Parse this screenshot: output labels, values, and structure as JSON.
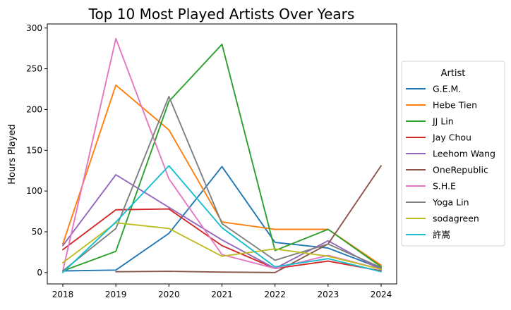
{
  "chart_data": {
    "type": "line",
    "title": "Top 10 Most Played Artists Over Years",
    "xlabel": "",
    "ylabel": "Hours Played",
    "x": [
      "2018",
      "2019",
      "2020",
      "2021",
      "2022",
      "2023",
      "2024"
    ],
    "ylim": [
      -14,
      305
    ],
    "yticks": [
      0,
      50,
      100,
      150,
      200,
      250,
      300
    ],
    "grid": false,
    "legend": {
      "title": "Artist",
      "placement": "outside-right"
    },
    "series": [
      {
        "name": "G.E.M.",
        "color": "#1f77b4",
        "values": [
          2,
          3,
          48,
          130,
          37,
          30,
          5
        ]
      },
      {
        "name": "Hebe Tien",
        "color": "#ff7f0e",
        "values": [
          35,
          230,
          175,
          62,
          53,
          53,
          9
        ]
      },
      {
        "name": "JJ Lin",
        "color": "#2ca02c",
        "values": [
          2,
          26,
          210,
          280,
          27,
          53,
          7
        ]
      },
      {
        "name": "Jay Chou",
        "color": "#d62728",
        "values": [
          28,
          77,
          78,
          33,
          5,
          14,
          2
        ]
      },
      {
        "name": "Leehom Wang",
        "color": "#9467bd",
        "values": [
          33,
          120,
          80,
          40,
          5,
          39,
          3
        ]
      },
      {
        "name": "OneRepublic",
        "color": "#8c564b",
        "values": [
          null,
          1,
          1.5,
          0.5,
          0,
          35,
          131
        ]
      },
      {
        "name": "S.H.E",
        "color": "#e377c2",
        "values": [
          2,
          287,
          115,
          22,
          5,
          21,
          4
        ]
      },
      {
        "name": "Yoga Lin",
        "color": "#7f7f7f",
        "values": [
          2,
          54,
          216,
          60,
          15,
          35,
          6
        ]
      },
      {
        "name": "sodagreen",
        "color": "#bcbd22",
        "values": [
          12,
          61,
          54,
          20,
          29,
          20,
          4
        ]
      },
      {
        "name": "許嵩",
        "color": "#17becf",
        "values": [
          0,
          62,
          131,
          55,
          7,
          17,
          1
        ]
      }
    ]
  }
}
